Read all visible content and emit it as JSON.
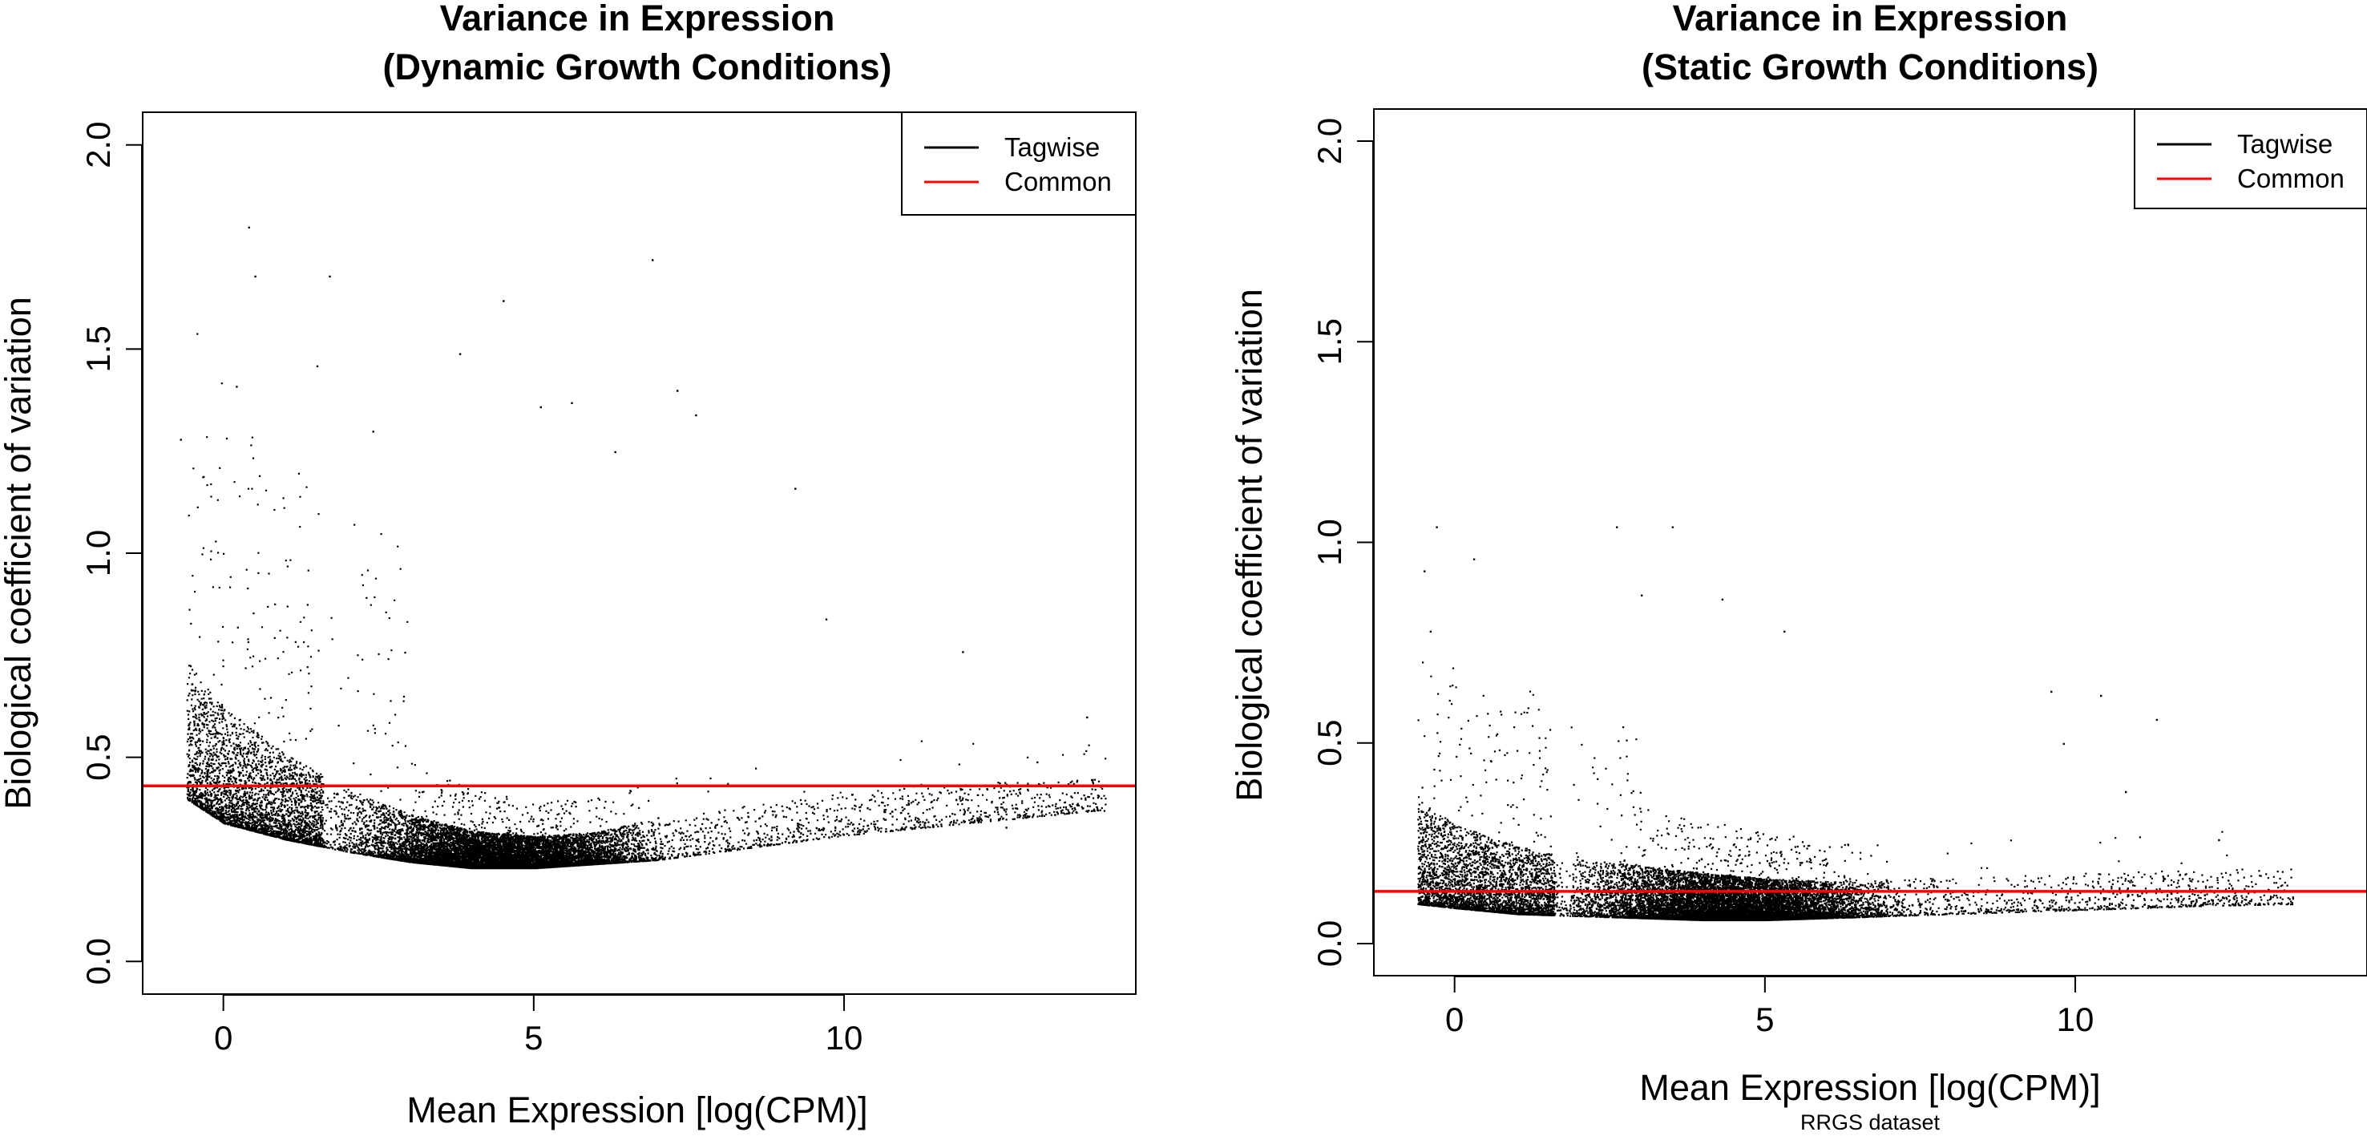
{
  "chart_data": [
    {
      "type": "scatter",
      "title_lines": [
        "Variance in Expression",
        "(Dynamic Growth Conditions)"
      ],
      "xlabel": "Mean Expression [log(CPM)]",
      "ylabel": "Biological coefficient of variation",
      "xlim": [
        -1.3,
        14.7
      ],
      "ylim": [
        -0.08,
        2.08
      ],
      "x_ticks": [
        0,
        5,
        10
      ],
      "y_ticks": [
        0.0,
        0.5,
        1.0,
        1.5,
        2.0
      ],
      "x_tick_labels": [
        "0",
        "5",
        "10"
      ],
      "y_tick_labels": [
        "0.0",
        "0.5",
        "1.0",
        "1.5",
        "2.0"
      ],
      "grid": false,
      "legend_position": "top-right",
      "legend": [
        {
          "label": "Tagwise",
          "color": "#000000"
        },
        {
          "label": "Common",
          "color": "#ff0000"
        }
      ],
      "series": [
        {
          "name": "Tagwise",
          "color": "#000000",
          "n_points": 16000,
          "trend_points": [
            [
              -0.6,
              0.53
            ],
            [
              0,
              0.45
            ],
            [
              1,
              0.38
            ],
            [
              2,
              0.33
            ],
            [
              3,
              0.29
            ],
            [
              4,
              0.265
            ],
            [
              5,
              0.26
            ],
            [
              6,
              0.27
            ],
            [
              7,
              0.29
            ],
            [
              8,
              0.31
            ],
            [
              9,
              0.33
            ],
            [
              10,
              0.35
            ],
            [
              12,
              0.38
            ],
            [
              14,
              0.4
            ]
          ],
          "floor_points": [
            [
              -0.6,
              0.4
            ],
            [
              0,
              0.34
            ],
            [
              1,
              0.3
            ],
            [
              2,
              0.27
            ],
            [
              3,
              0.245
            ],
            [
              4,
              0.23
            ],
            [
              5,
              0.23
            ],
            [
              6,
              0.24
            ],
            [
              7,
              0.25
            ],
            [
              8,
              0.27
            ],
            [
              9,
              0.29
            ],
            [
              10,
              0.31
            ],
            [
              12,
              0.34
            ],
            [
              14,
              0.37
            ]
          ],
          "x_range": [
            -0.6,
            14.2
          ],
          "outliers": [
            [
              0.4,
              1.8
            ],
            [
              0.5,
              1.68
            ],
            [
              1.7,
              1.68
            ],
            [
              6.9,
              1.72
            ],
            [
              4.5,
              1.62
            ],
            [
              3.8,
              1.49
            ],
            [
              1.5,
              1.46
            ],
            [
              -0.7,
              1.28
            ],
            [
              0.2,
              1.41
            ],
            [
              2.4,
              1.3
            ],
            [
              5.1,
              1.36
            ],
            [
              5.6,
              1.37
            ],
            [
              6.3,
              1.25
            ],
            [
              7.6,
              1.34
            ],
            [
              9.2,
              1.16
            ],
            [
              9.7,
              0.84
            ],
            [
              11.9,
              0.76
            ],
            [
              13.1,
              0.49
            ],
            [
              13.9,
              0.6
            ],
            [
              12.6,
              0.33
            ],
            [
              7.3,
              1.4
            ]
          ]
        },
        {
          "name": "Common",
          "color": "#ff0000",
          "y": 0.43
        }
      ]
    },
    {
      "type": "scatter",
      "title_lines": [
        "Variance in Expression",
        "(Static Growth Conditions)"
      ],
      "xlabel": "Mean Expression [log(CPM)]",
      "ylabel": "Biological coefficient of variation",
      "caption": "RRGS dataset",
      "xlim": [
        -1.3,
        14.7
      ],
      "ylim": [
        -0.08,
        2.08
      ],
      "x_ticks": [
        0,
        5,
        10
      ],
      "y_ticks": [
        0.0,
        0.5,
        1.0,
        1.5,
        2.0
      ],
      "x_tick_labels": [
        "0",
        "5",
        "10"
      ],
      "y_tick_labels": [
        "0.0",
        "0.5",
        "1.0",
        "1.5",
        "2.0"
      ],
      "grid": false,
      "legend_position": "top-right",
      "legend": [
        {
          "label": "Tagwise",
          "color": "#000000"
        },
        {
          "label": "Common",
          "color": "#ff0000"
        }
      ],
      "series": [
        {
          "name": "Tagwise",
          "color": "#000000",
          "n_points": 16000,
          "trend_points": [
            [
              -0.6,
              0.2
            ],
            [
              0,
              0.17
            ],
            [
              1,
              0.14
            ],
            [
              2,
              0.125
            ],
            [
              3,
              0.115
            ],
            [
              4,
              0.105
            ],
            [
              5,
              0.1
            ],
            [
              6,
              0.1
            ],
            [
              7,
              0.105
            ],
            [
              8,
              0.11
            ],
            [
              9,
              0.115
            ],
            [
              10,
              0.12
            ],
            [
              12,
              0.13
            ],
            [
              13.5,
              0.135
            ]
          ],
          "floor_points": [
            [
              -0.6,
              0.1
            ],
            [
              0,
              0.09
            ],
            [
              1,
              0.075
            ],
            [
              2,
              0.07
            ],
            [
              3,
              0.065
            ],
            [
              4,
              0.06
            ],
            [
              5,
              0.06
            ],
            [
              6,
              0.065
            ],
            [
              7,
              0.07
            ],
            [
              8,
              0.075
            ],
            [
              9,
              0.08
            ],
            [
              10,
              0.085
            ],
            [
              12,
              0.095
            ],
            [
              13.5,
              0.1
            ]
          ],
          "x_range": [
            -0.6,
            13.5
          ],
          "outliers": [
            [
              -0.3,
              1.04
            ],
            [
              -0.5,
              0.93
            ],
            [
              0.3,
              0.96
            ],
            [
              2.6,
              1.04
            ],
            [
              3.5,
              1.04
            ],
            [
              3.0,
              0.87
            ],
            [
              4.3,
              0.86
            ],
            [
              5.3,
              0.78
            ],
            [
              -0.4,
              0.78
            ],
            [
              9.6,
              0.63
            ],
            [
              10.4,
              0.62
            ],
            [
              11.3,
              0.56
            ],
            [
              9.8,
              0.5
            ],
            [
              10.8,
              0.38
            ],
            [
              12.3,
              0.26
            ]
          ]
        },
        {
          "name": "Common",
          "color": "#ff0000",
          "y": 0.13
        }
      ]
    }
  ]
}
